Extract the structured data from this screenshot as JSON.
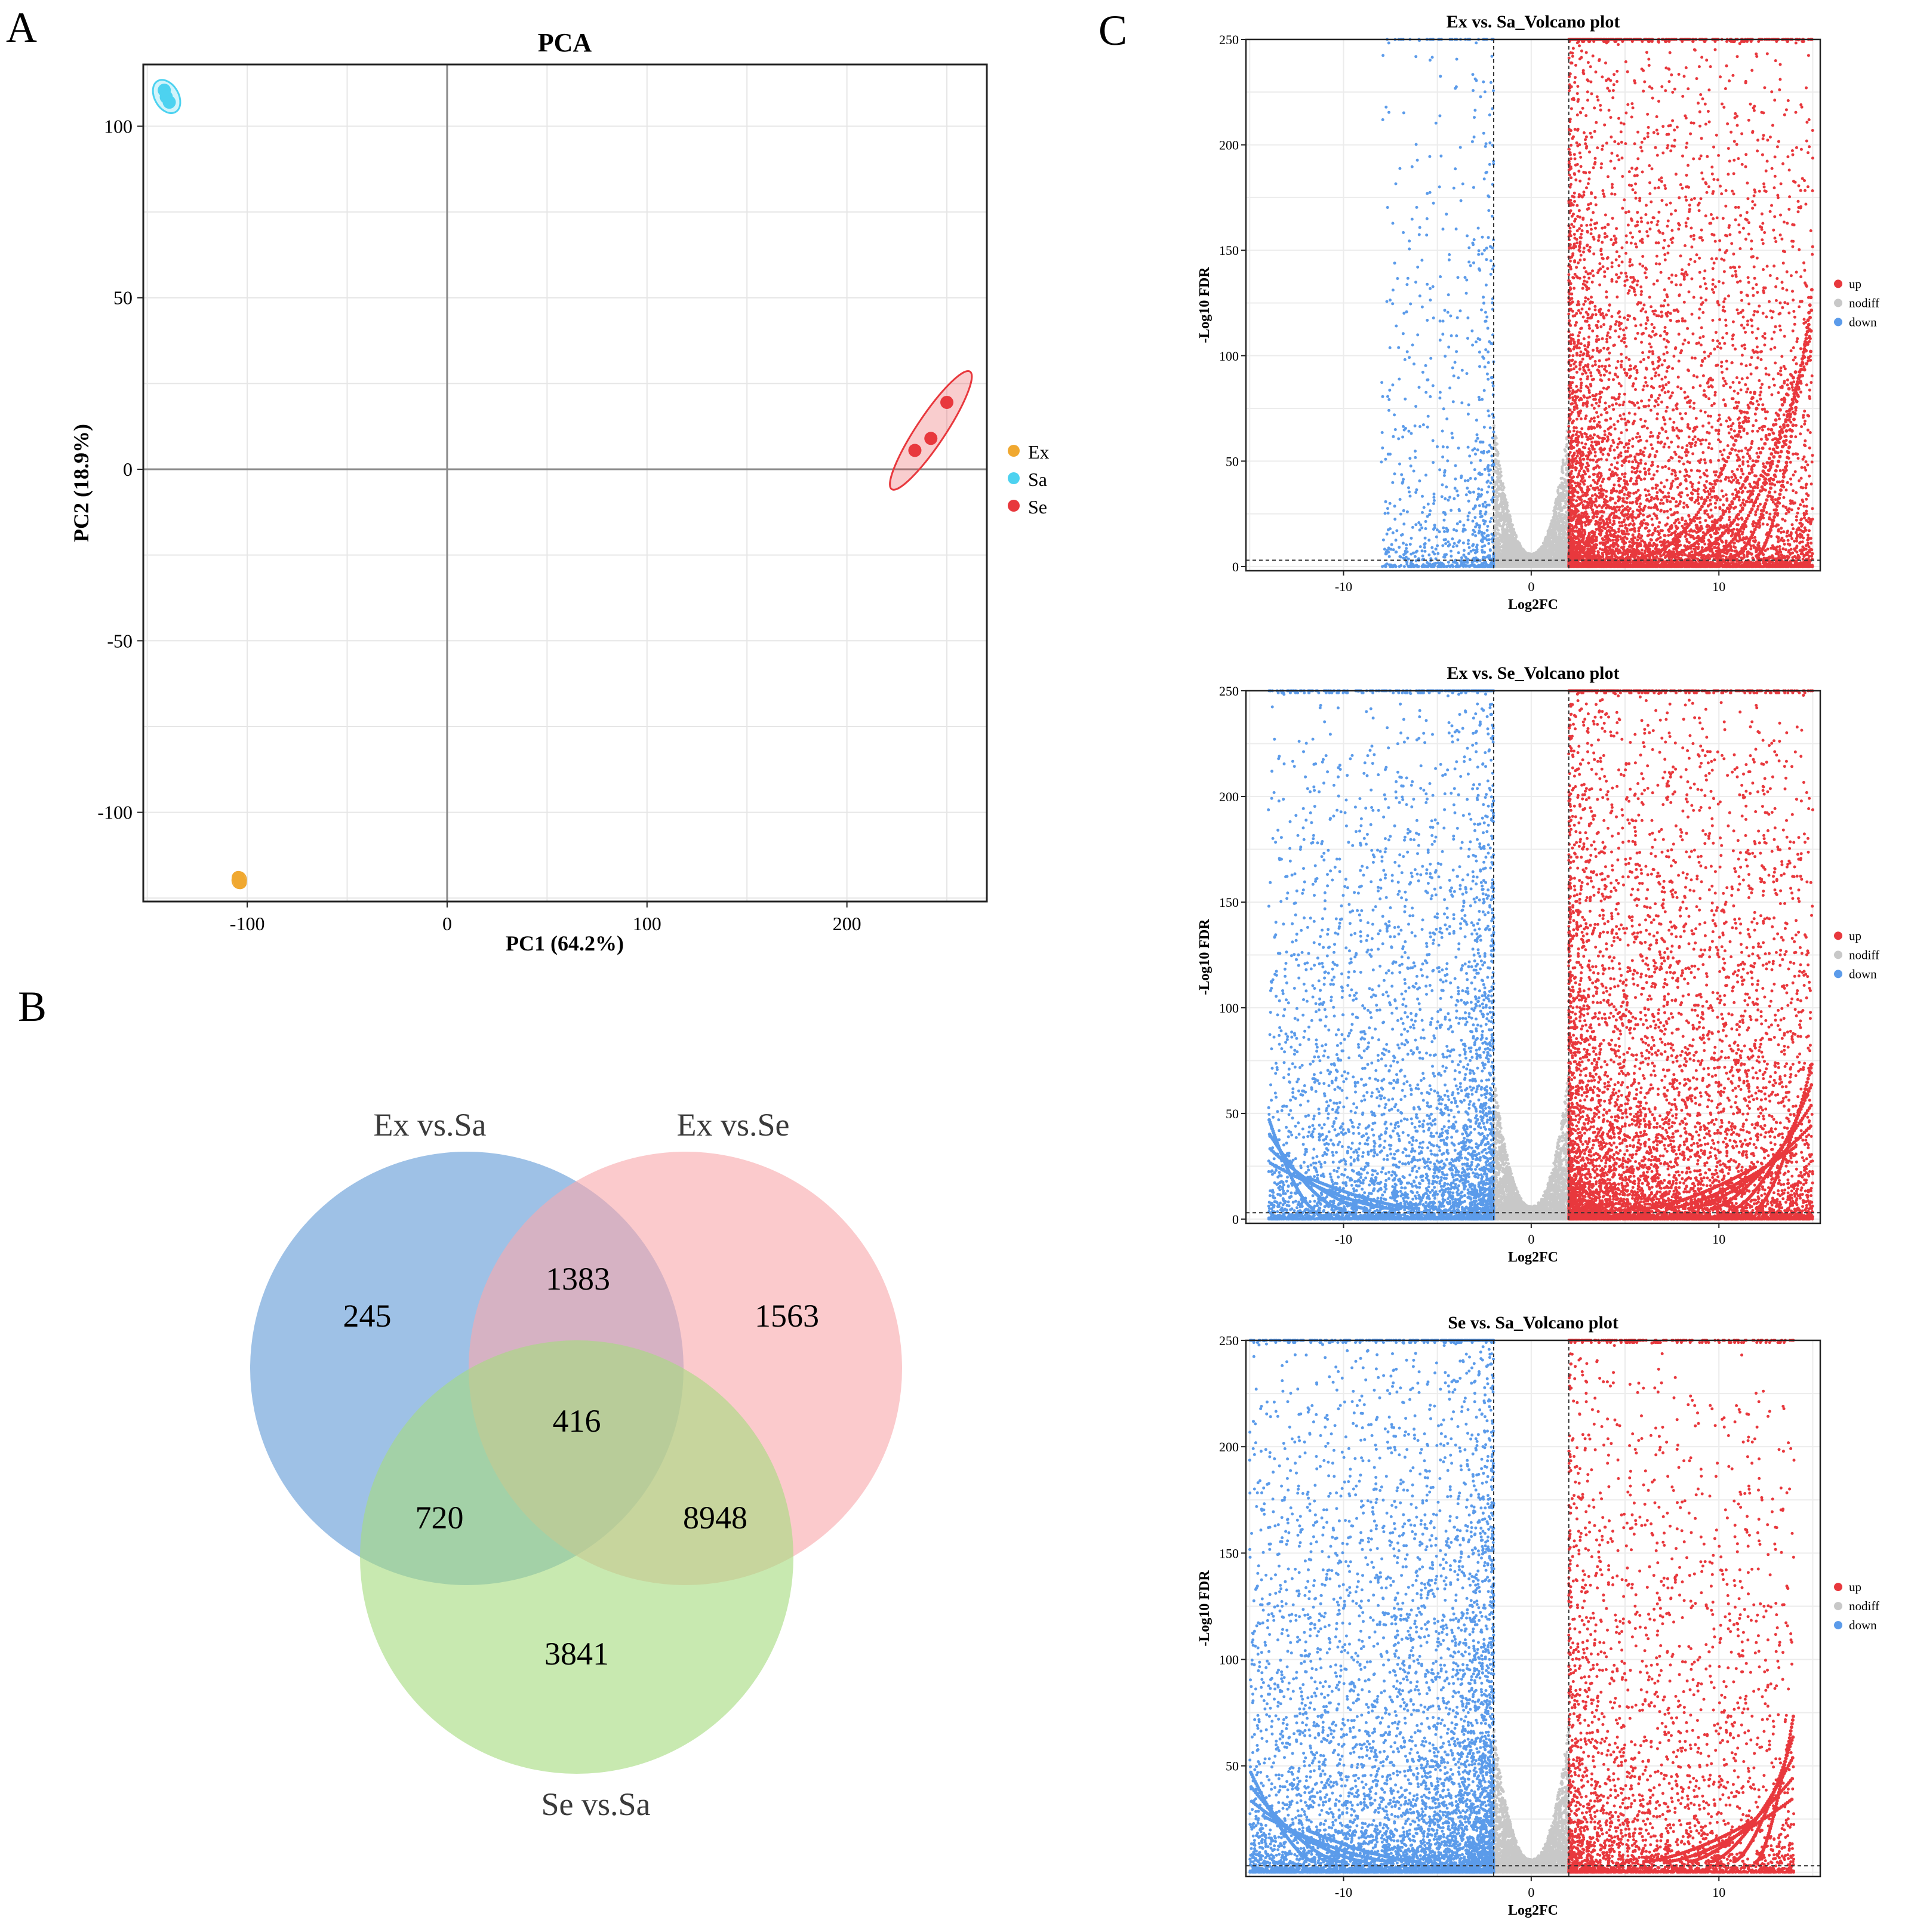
{
  "panels": {
    "a": "A",
    "b": "B",
    "c": "C"
  },
  "colors": {
    "ex": "#F0A830",
    "sa": "#4DD2F0",
    "se": "#E8383D",
    "up": "#E8383D",
    "nodiff": "#C8C8C8",
    "down": "#5B9BEA",
    "venn_ex_sa": "#6A9FD8",
    "venn_ex_se": "#F9A9AC",
    "venn_se_sa": "#A6DB7F"
  },
  "chart_data": [
    {
      "type": "scatter",
      "title": "PCA",
      "xlabel": "PC1 (64.2%)",
      "ylabel": "PC2 (18.9%)",
      "xlim": [
        -152,
        270
      ],
      "ylim": [
        -126,
        118
      ],
      "xticks": [
        -100,
        0,
        100,
        200
      ],
      "xtick_labels": [
        "-100",
        "0",
        "100",
        "200"
      ],
      "yticks": [
        -100,
        -50,
        0,
        50,
        100
      ],
      "ytick_labels": [
        "-100",
        "-50",
        "0",
        "50",
        "100"
      ],
      "legend": [
        "Ex",
        "Sa",
        "Se"
      ],
      "series": [
        {
          "name": "Ex",
          "points": [
            [
              -104.5,
              -119
            ],
            [
              -103.5,
              -120.5
            ],
            [
              -104,
              -119.8
            ]
          ]
        },
        {
          "name": "Sa",
          "points": [
            [
              -141.5,
              110.5
            ],
            [
              -140.5,
              108.5
            ],
            [
              -139,
              107
            ]
          ]
        },
        {
          "name": "Se",
          "points": [
            [
              234,
              5.5
            ],
            [
              242,
              9
            ],
            [
              250,
              19.5
            ]
          ]
        }
      ]
    },
    {
      "type": "venn",
      "sets": [
        "Ex vs.Sa",
        "Ex vs.Se",
        "Se vs.Sa"
      ],
      "regions": {
        "ex_sa_only": "245",
        "ex_se_only": "1563",
        "se_sa_only": "3841",
        "ex_sa_and_ex_se": "1383",
        "ex_sa_and_se_sa": "720",
        "ex_se_and_se_sa": "8948",
        "all_three": "416"
      }
    },
    {
      "type": "scatter",
      "title": "Ex vs. Sa_Volcano plot",
      "xlabel": "Log2FC",
      "ylabel": "-Log10 FDR",
      "xlim": [
        -15.2,
        15.4
      ],
      "ylim": [
        -2,
        250
      ],
      "xticks": [
        -10,
        0,
        10
      ],
      "xtick_labels": [
        "-10",
        "0",
        "10"
      ],
      "yticks": [
        0,
        50,
        100,
        150,
        200,
        250
      ],
      "ytick_labels": [
        "0",
        "50",
        "100",
        "150",
        "200",
        "250"
      ],
      "thresholds": {
        "log2fc": [
          -2,
          2
        ],
        "fdr": 3
      },
      "legend": [
        "up",
        "nodiff",
        "down"
      ],
      "density": {
        "up": 2.6,
        "down": 0.35,
        "nodiff": 1.0,
        "up_arcs": 1,
        "down_arcs": 0,
        "up_max_x": 15,
        "down_min_x": -8
      }
    },
    {
      "type": "scatter",
      "title": "Ex vs. Se_Volcano plot",
      "xlabel": "Log2FC",
      "ylabel": "-Log10 FDR",
      "xlim": [
        -15.2,
        15.4
      ],
      "ylim": [
        -2,
        250
      ],
      "xticks": [
        -10,
        0,
        10
      ],
      "xtick_labels": [
        "-10",
        "0",
        "10"
      ],
      "yticks": [
        0,
        50,
        100,
        150,
        200,
        250
      ],
      "ytick_labels": [
        "0",
        "50",
        "100",
        "150",
        "200",
        "250"
      ],
      "thresholds": {
        "log2fc": [
          -2,
          2
        ],
        "fdr": 3
      },
      "legend": [
        "up",
        "nodiff",
        "down"
      ],
      "density": {
        "up": 2.8,
        "down": 1.9,
        "nodiff": 1.0,
        "up_arcs": 1,
        "down_arcs": 1,
        "up_max_x": 15,
        "down_min_x": -14
      }
    },
    {
      "type": "scatter",
      "title": "Se vs. Sa_Volcano plot",
      "xlabel": "Log2FC",
      "ylabel": "-Log10 FDR",
      "xlim": [
        -15.2,
        15.4
      ],
      "ylim": [
        -2,
        250
      ],
      "xticks": [
        -10,
        0,
        10
      ],
      "xtick_labels": [
        "-10",
        "0",
        "10"
      ],
      "yticks": [
        50,
        100,
        150,
        200,
        250
      ],
      "ytick_labels": [
        "50",
        "100",
        "150",
        "200",
        "250"
      ],
      "thresholds": {
        "log2fc": [
          -2,
          2
        ],
        "fdr": 3
      },
      "legend": [
        "up",
        "nodiff",
        "down"
      ],
      "density": {
        "up": 1.3,
        "down": 2.7,
        "nodiff": 1.0,
        "up_arcs": 1,
        "down_arcs": 1,
        "up_max_x": 14,
        "down_min_x": -15
      }
    }
  ]
}
